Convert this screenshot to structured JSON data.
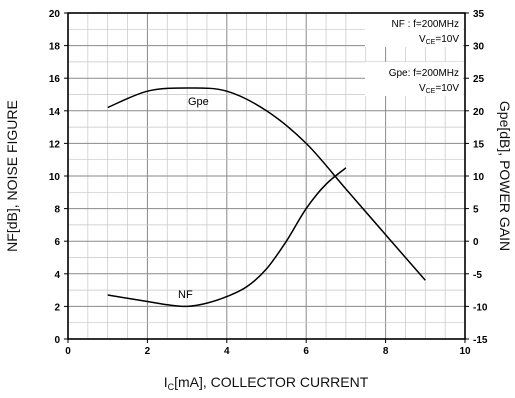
{
  "chart_data": {
    "type": "line",
    "title": "",
    "xlabel": "I",
    "xlabel_sub": "C",
    "xlabel_rest": "[mA], COLLECTOR CURRENT",
    "ylabel_left": "NF[dB], NOISE FIGURE",
    "ylabel_right": "Gpe[dB], POWER GAIN",
    "xlim": [
      0,
      10
    ],
    "ylim_left": [
      0,
      20
    ],
    "ylim_right": [
      -15,
      35
    ],
    "x_ticks": [
      0,
      2,
      4,
      6,
      8,
      10
    ],
    "y_left_ticks": [
      0,
      2,
      4,
      6,
      8,
      10,
      12,
      14,
      16,
      18,
      20
    ],
    "y_right_ticks": [
      -15,
      -10,
      -5,
      0,
      5,
      10,
      15,
      20,
      25,
      30,
      35
    ],
    "grid": true,
    "series": [
      {
        "name": "NF",
        "axis": "left",
        "x": [
          1,
          2,
          2.5,
          3,
          3.5,
          4,
          4.5,
          5,
          5.5,
          6,
          6.5,
          7
        ],
        "y": [
          2.7,
          2.3,
          2.1,
          2.0,
          2.2,
          2.6,
          3.2,
          4.3,
          6.0,
          8.0,
          9.5,
          10.5
        ]
      },
      {
        "name": "Gpe",
        "axis": "right",
        "x": [
          1,
          2,
          3,
          4,
          5,
          6,
          7,
          8,
          9
        ],
        "y": [
          20.5,
          23,
          23.5,
          23,
          20,
          15,
          8,
          1,
          -6
        ]
      }
    ],
    "annotations": [
      {
        "line1": "NF : f=200MHz",
        "line2_pre": "V",
        "line2_sub": "CE",
        "line2_post": "=10V"
      },
      {
        "line1": "Gpe: f=200MHz",
        "line2_pre": "V",
        "line2_sub": "CE",
        "line2_post": "=10V"
      }
    ]
  }
}
